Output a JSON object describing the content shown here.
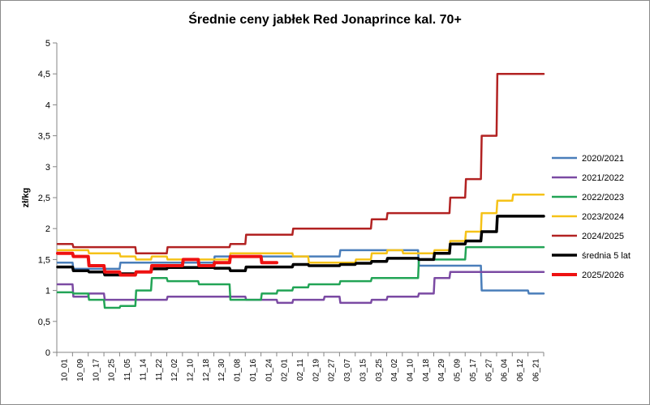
{
  "chart_data": {
    "type": "line",
    "title": "Średnie ceny jabłek Red Jonaprince kal. 70+",
    "xlabel": "",
    "ylabel": "zł/kg",
    "ylim": [
      0,
      5
    ],
    "y_ticks": [
      "0",
      "0,5",
      "1",
      "1,5",
      "2",
      "2,5",
      "3",
      "3,5",
      "4",
      "4,5",
      "5"
    ],
    "grid": false,
    "legend_position": "right",
    "categories": [
      "10_01",
      "10_09",
      "10_17",
      "10_25",
      "11_05",
      "11_14",
      "11_22",
      "12_02",
      "12_10",
      "12_18",
      "12_30",
      "01_08",
      "01_16",
      "01_24",
      "02_01",
      "02_11",
      "02_19",
      "02_27",
      "03_07",
      "03_15",
      "03_25",
      "04_02",
      "04_10",
      "04_18",
      "04_29",
      "05_09",
      "05_17",
      "05_27",
      "06_04",
      "06_12",
      "06_21"
    ],
    "series": [
      {
        "name": "2020/2021",
        "color": "#4a7eba",
        "width": 2.5,
        "values": [
          1.45,
          1.35,
          1.35,
          1.35,
          1.45,
          1.45,
          1.45,
          1.45,
          1.45,
          1.45,
          1.55,
          1.55,
          1.55,
          1.55,
          1.55,
          1.55,
          1.55,
          1.55,
          1.65,
          1.65,
          1.65,
          1.65,
          1.65,
          1.4,
          1.4,
          1.4,
          1.4,
          1.0,
          1.0,
          1.0,
          0.95
        ]
      },
      {
        "name": "2021/2022",
        "color": "#7b4aa3",
        "width": 2.5,
        "values": [
          1.1,
          0.9,
          0.95,
          0.85,
          0.85,
          0.85,
          0.85,
          0.9,
          0.9,
          0.9,
          0.9,
          0.9,
          0.85,
          0.85,
          0.8,
          0.85,
          0.85,
          0.9,
          0.8,
          0.8,
          0.85,
          0.9,
          0.9,
          0.95,
          1.2,
          1.3,
          1.3,
          1.3,
          1.3,
          1.3,
          1.3
        ]
      },
      {
        "name": "2022/2023",
        "color": "#22a456",
        "width": 2.5,
        "values": [
          0.97,
          0.95,
          0.85,
          0.72,
          0.75,
          1.0,
          1.2,
          1.15,
          1.15,
          1.1,
          1.1,
          0.85,
          0.85,
          0.95,
          1.0,
          1.05,
          1.1,
          1.1,
          1.15,
          1.15,
          1.2,
          1.2,
          1.2,
          1.5,
          1.5,
          1.5,
          1.7,
          1.7,
          1.7,
          1.7,
          1.7
        ]
      },
      {
        "name": "2023/2024",
        "color": "#f5c218",
        "width": 2.5,
        "values": [
          1.65,
          1.65,
          1.6,
          1.6,
          1.55,
          1.5,
          1.55,
          1.5,
          1.5,
          1.5,
          1.5,
          1.6,
          1.6,
          1.6,
          1.6,
          1.55,
          1.45,
          1.45,
          1.45,
          1.5,
          1.6,
          1.65,
          1.6,
          1.6,
          1.65,
          1.8,
          1.95,
          2.25,
          2.45,
          2.55,
          2.55
        ]
      },
      {
        "name": "2024/2025",
        "color": "#b22222",
        "width": 2.5,
        "values": [
          1.75,
          1.7,
          1.7,
          1.7,
          1.7,
          1.6,
          1.6,
          1.7,
          1.7,
          1.7,
          1.7,
          1.75,
          1.9,
          1.9,
          1.9,
          2.0,
          2.0,
          2.0,
          2.0,
          2.0,
          2.15,
          2.25,
          2.25,
          2.25,
          2.25,
          2.5,
          2.8,
          3.5,
          4.5,
          4.5,
          4.5
        ]
      },
      {
        "name": "średnia 5 lat",
        "color": "#000000",
        "width": 3.5,
        "values": [
          1.38,
          1.32,
          1.3,
          1.25,
          1.27,
          1.3,
          1.35,
          1.37,
          1.37,
          1.37,
          1.36,
          1.32,
          1.38,
          1.38,
          1.38,
          1.42,
          1.4,
          1.4,
          1.42,
          1.44,
          1.47,
          1.52,
          1.52,
          1.5,
          1.6,
          1.75,
          1.8,
          1.95,
          2.2,
          2.2,
          2.2
        ]
      },
      {
        "name": "2025/2026",
        "color": "#ee1111",
        "width": 4,
        "values": [
          1.6,
          1.55,
          1.4,
          1.3,
          1.25,
          1.3,
          1.4,
          1.4,
          1.5,
          1.4,
          1.45,
          1.55,
          1.55,
          1.45,
          null,
          null,
          null,
          null,
          null,
          null,
          null,
          null,
          null,
          null,
          null,
          null,
          null,
          null,
          null,
          null,
          null
        ]
      }
    ]
  }
}
